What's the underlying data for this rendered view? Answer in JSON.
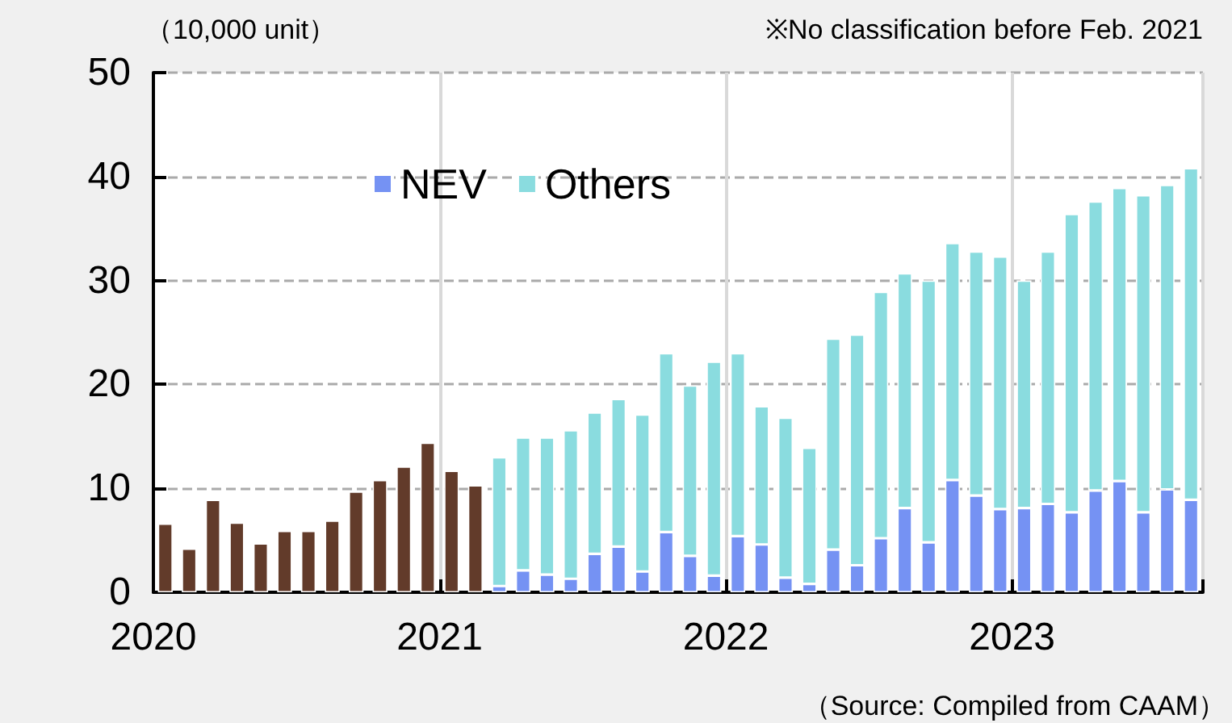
{
  "chart_data": {
    "type": "bar",
    "stacked": true,
    "ylabel": "（10,000 unit）",
    "annotations": [
      "※No classification before Feb. 2021",
      "（Source: Compiled from CAAM）"
    ],
    "categories": [
      "2020",
      null,
      null,
      null,
      null,
      null,
      null,
      null,
      null,
      null,
      null,
      null,
      "2021",
      null,
      null,
      null,
      null,
      null,
      null,
      null,
      null,
      null,
      null,
      null,
      "2022",
      null,
      null,
      null,
      null,
      null,
      null,
      null,
      null,
      null,
      null,
      null,
      "2023",
      null,
      null,
      null,
      null,
      null,
      null,
      null
    ],
    "series": [
      {
        "color": "#623b2a",
        "values": [
          6.6,
          4.2,
          8.9,
          6.7,
          4.7,
          5.9,
          5.9,
          6.9,
          9.7,
          10.8,
          12.1,
          14.4,
          11.7,
          10.3,
          null,
          null,
          null,
          null,
          null,
          null,
          null,
          null,
          null,
          null,
          null,
          null,
          null,
          null,
          null,
          null,
          null,
          null,
          null,
          null,
          null,
          null,
          null,
          null,
          null,
          null,
          null,
          null,
          null,
          null
        ]
      },
      {
        "name": "NEV",
        "color": "#7592f3",
        "values": [
          null,
          null,
          null,
          null,
          null,
          null,
          null,
          null,
          null,
          null,
          null,
          null,
          null,
          null,
          0.6,
          2.1,
          1.7,
          1.3,
          3.7,
          4.4,
          2.0,
          5.8,
          3.5,
          1.6,
          5.4,
          4.6,
          1.4,
          0.8,
          4.1,
          2.6,
          5.2,
          8.1,
          4.8,
          10.8,
          9.3,
          8.0,
          8.1,
          8.5,
          7.7,
          9.8,
          10.7,
          7.7,
          9.9,
          8.9
        ]
      },
      {
        "name": "Others",
        "color": "#8adcdf",
        "values": [
          null,
          null,
          null,
          null,
          null,
          null,
          null,
          null,
          null,
          null,
          null,
          null,
          null,
          null,
          12.4,
          12.8,
          13.2,
          14.3,
          13.6,
          14.2,
          15.1,
          17.2,
          16.4,
          20.6,
          17.6,
          13.3,
          15.4,
          13.1,
          20.3,
          22.2,
          23.7,
          22.6,
          25.2,
          22.8,
          23.5,
          24.3,
          21.9,
          24.3,
          28.7,
          27.8,
          28.2,
          30.5,
          29.3,
          31.9
        ]
      }
    ],
    "ylim": [
      0,
      50
    ],
    "yticks": [
      0,
      10,
      20,
      30,
      40,
      50
    ],
    "grid": true,
    "legend": "top left"
  }
}
